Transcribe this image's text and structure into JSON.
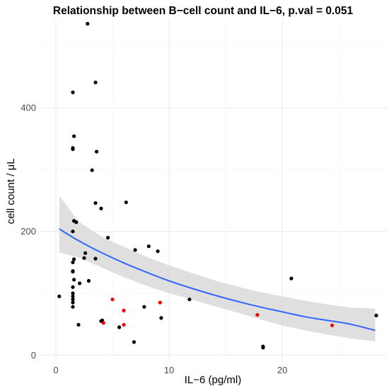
{
  "chart_data": {
    "type": "scatter",
    "title": "Relationship between B−cell count and IL−6, p.val = 0.051",
    "xlabel": "IL−6 (pg/ml)",
    "ylabel": "cell count / μL",
    "xlim": [
      -1.5,
      29.3
    ],
    "ylim": [
      -10,
      540
    ],
    "x_ticks": [
      0,
      10,
      20
    ],
    "x_tick_labels": [
      "0",
      "10",
      "20"
    ],
    "y_ticks": [
      0,
      200,
      400
    ],
    "y_tick_labels": [
      "0",
      "200",
      "400"
    ],
    "grid": true,
    "legend": "none",
    "colors": {
      "black_points": "#000000",
      "red_points": "#ff0000",
      "fit_line": "#3366ff",
      "confidence_band": "#d9d9d9",
      "grid_major": "#ebebeb",
      "grid_minor": "#f5f5f5"
    },
    "series": [
      {
        "color": "black",
        "points": [
          [
            2.8,
            536
          ],
          [
            1.5,
            425
          ],
          [
            3.5,
            441
          ],
          [
            1.6,
            354
          ],
          [
            1.5,
            335
          ],
          [
            1.5,
            333
          ],
          [
            3.6,
            329
          ],
          [
            3.2,
            299
          ],
          [
            3.5,
            246
          ],
          [
            6.2,
            247
          ],
          [
            4.0,
            237
          ],
          [
            1.6,
            217
          ],
          [
            1.8,
            215
          ],
          [
            1.5,
            200
          ],
          [
            4.6,
            190
          ],
          [
            8.2,
            176
          ],
          [
            7.0,
            170
          ],
          [
            9.0,
            168
          ],
          [
            2.6,
            165
          ],
          [
            1.6,
            155
          ],
          [
            2.5,
            157
          ],
          [
            3.5,
            156
          ],
          [
            1.5,
            150
          ],
          [
            1.5,
            136
          ],
          [
            1.5,
            135
          ],
          [
            1.6,
            122
          ],
          [
            2.9,
            120
          ],
          [
            2.1,
            116
          ],
          [
            20.8,
            124
          ],
          [
            1.5,
            110
          ],
          [
            1.5,
            100
          ],
          [
            1.5,
            95
          ],
          [
            1.5,
            90
          ],
          [
            11.8,
            90
          ],
          [
            0.3,
            95
          ],
          [
            1.5,
            85
          ],
          [
            1.5,
            78
          ],
          [
            7.8,
            78
          ],
          [
            9.3,
            60
          ],
          [
            4.1,
            56
          ],
          [
            4.0,
            55
          ],
          [
            2.0,
            49
          ],
          [
            5.6,
            45
          ],
          [
            6.9,
            21
          ],
          [
            18.3,
            14
          ],
          [
            18.3,
            12
          ],
          [
            28.3,
            64
          ]
        ]
      },
      {
        "color": "red",
        "points": [
          [
            5.0,
            90
          ],
          [
            4.2,
            52
          ],
          [
            6.0,
            72
          ],
          [
            9.2,
            85
          ],
          [
            6.0,
            49
          ],
          [
            17.8,
            65
          ],
          [
            24.4,
            48
          ]
        ]
      }
    ],
    "fit": {
      "x": [
        0.3,
        2,
        4,
        6,
        8,
        10,
        12,
        14,
        16,
        18,
        20,
        22,
        24,
        26,
        28.2
      ],
      "y": [
        204,
        185,
        166,
        149,
        134,
        120,
        108,
        97,
        87,
        78,
        70,
        62,
        56,
        50,
        40
      ],
      "lower": [
        166,
        158,
        142,
        126,
        112,
        100,
        90,
        79,
        69,
        58,
        48,
        40,
        33,
        27,
        22
      ],
      "upper": [
        258,
        216,
        192,
        175,
        159,
        145,
        133,
        121,
        111,
        102,
        95,
        88,
        82,
        77,
        75
      ]
    }
  }
}
